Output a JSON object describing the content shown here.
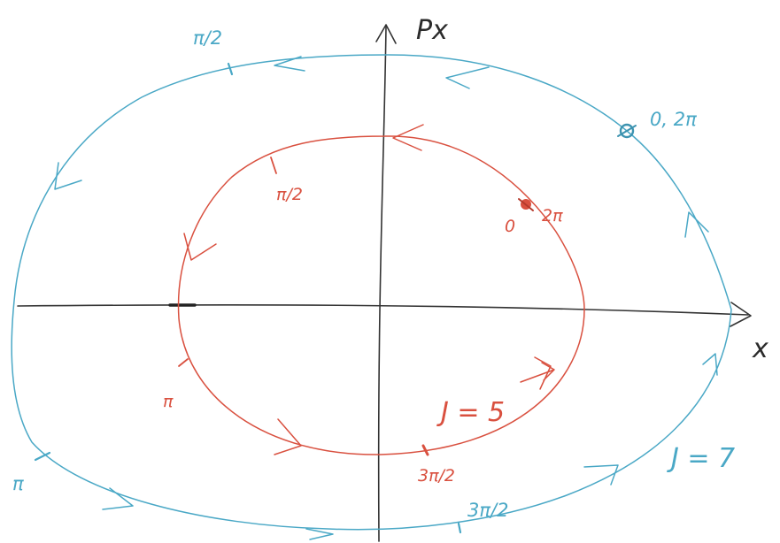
{
  "colors": {
    "red": "#d9503f",
    "blue": "#4aa8c6",
    "axis": "#333333"
  },
  "axes": {
    "x_label": "x",
    "y_label": "Px"
  },
  "inner_orbit": {
    "label": "J = 5",
    "phase_start": "0",
    "phase_end": "2π",
    "phase_quarter": "π/2",
    "phase_half": "π",
    "phase_three_quarter": "3π/2"
  },
  "outer_orbit": {
    "label": "J = 7",
    "phase_start_end": "0, 2π",
    "phase_quarter": "π/2",
    "phase_half": "π",
    "phase_three_quarter": "3π/2"
  }
}
